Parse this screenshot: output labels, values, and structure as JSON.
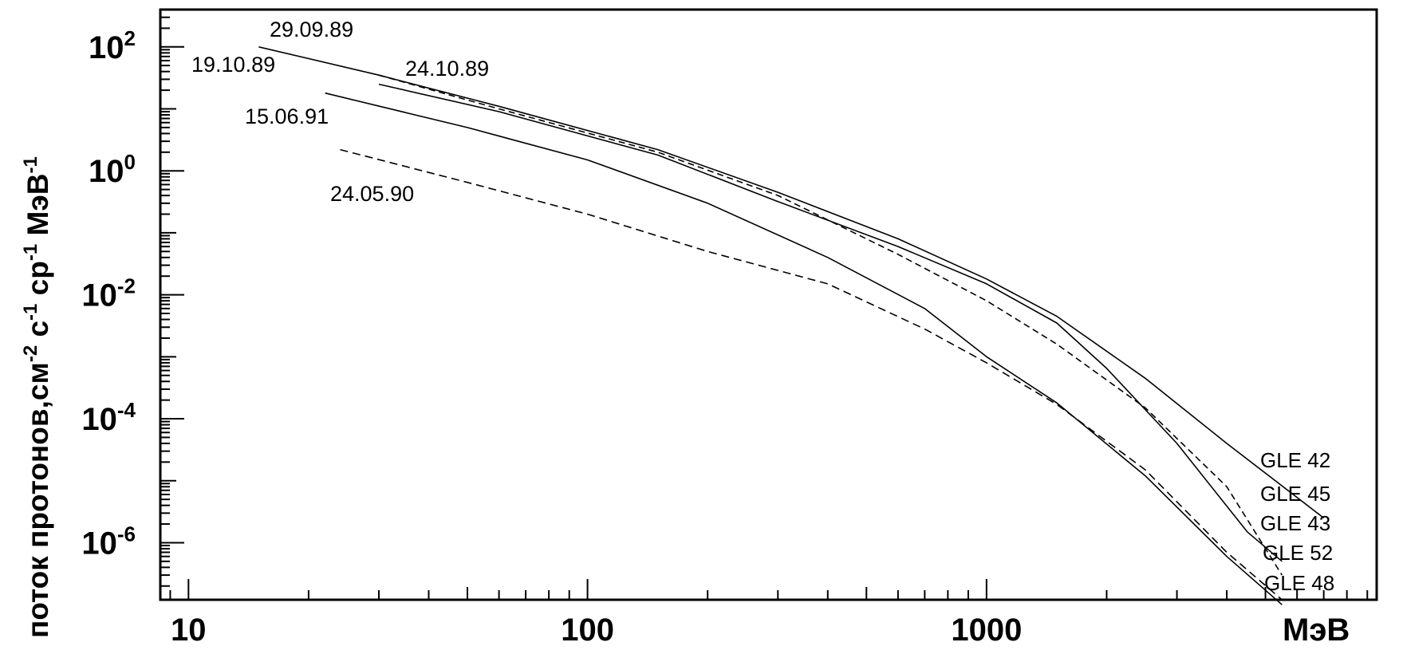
{
  "chart_data": {
    "type": "line",
    "title": "",
    "xlabel": "МэВ",
    "ylabel": {
      "parts": [
        "поток протонов,см",
        "-2",
        " с",
        "-1",
        " ср",
        "-1",
        " МэВ",
        "-1"
      ]
    },
    "xscale": "log",
    "yscale": "log",
    "xlim": [
      8.5,
      9500
    ],
    "ylim": [
      1.2e-07,
      400
    ],
    "xticks": [
      {
        "value": 10,
        "label": "10"
      },
      {
        "value": 100,
        "label": "100"
      },
      {
        "value": 1000,
        "label": "1000"
      }
    ],
    "yticks": [
      {
        "value": 100,
        "base": "10",
        "exp": "2"
      },
      {
        "value": 1,
        "base": "10",
        "exp": "0"
      },
      {
        "value": 0.01,
        "base": "10",
        "exp": "-2"
      },
      {
        "value": 0.0001,
        "base": "10",
        "exp": "-4"
      },
      {
        "value": 1e-06,
        "base": "10",
        "exp": "-6"
      }
    ],
    "grid": false,
    "series": [
      {
        "name": "29.09.89",
        "dash": "none",
        "x": [
          15,
          30,
          60,
          150,
          300,
          600,
          1000,
          1500,
          2500,
          4000,
          7000
        ],
        "y": [
          100,
          35,
          11,
          2.2,
          0.45,
          0.08,
          0.018,
          0.0045,
          0.00045,
          4e-05,
          2.5e-06
        ]
      },
      {
        "name": "24.10.89",
        "dash": "none",
        "x": [
          30,
          60,
          150,
          300,
          600,
          1000,
          1500,
          2000,
          3000,
          4500,
          5500
        ],
        "y": [
          25,
          9,
          1.8,
          0.32,
          0.06,
          0.015,
          0.0035,
          0.00065,
          4e-05,
          1.5e-06,
          5e-07
        ]
      },
      {
        "name": "19.10.89",
        "dash": "8,5",
        "x": [
          30,
          60,
          150,
          300,
          600,
          1000,
          1500,
          2500,
          4000,
          5500
        ],
        "y": [
          35,
          10,
          2.0,
          0.4,
          0.045,
          0.008,
          0.0016,
          0.00015,
          8e-06,
          3e-07
        ]
      },
      {
        "name": "15.06.91",
        "dash": "none",
        "x": [
          22,
          50,
          100,
          200,
          400,
          700,
          1000,
          1500,
          2500,
          4000,
          5500
        ],
        "y": [
          18,
          5,
          1.5,
          0.3,
          0.04,
          0.006,
          0.001,
          0.00018,
          1.2e-05,
          6e-07,
          1e-07
        ]
      },
      {
        "name": "24.05.90",
        "dash": "10,6",
        "x": [
          24,
          50,
          100,
          200,
          400,
          700,
          1000,
          1500,
          2500,
          4000,
          5500
        ],
        "y": [
          2.2,
          0.65,
          0.2,
          0.05,
          0.015,
          0.0028,
          0.0008,
          0.00017,
          1.5e-05,
          7e-07,
          1.2e-07
        ]
      }
    ],
    "legend": {
      "placement": "bottom-right",
      "entries": [
        "GLE 42",
        "GLE 45",
        "GLE 43",
        "GLE 52",
        "GLE 48"
      ]
    }
  }
}
